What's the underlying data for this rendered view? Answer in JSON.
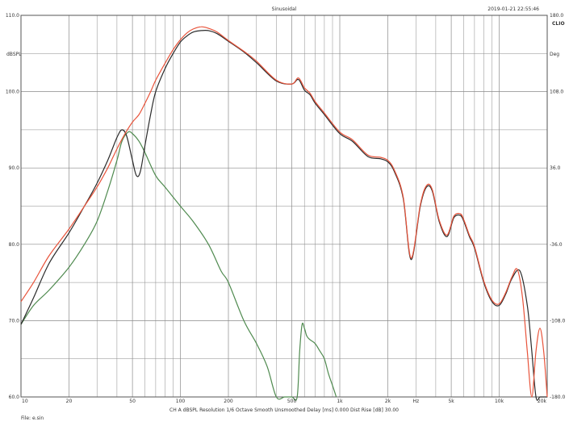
{
  "chart_data": {
    "type": "line",
    "title": "Sinusoidal",
    "timestamp": "2019-01-21 22:55:46",
    "logo": "CLIO",
    "xscale": "log",
    "xlim": [
      10,
      20000
    ],
    "ylim": [
      60,
      110
    ],
    "ylim_right": [
      -180,
      180
    ],
    "grid": true,
    "ylabel": "dBSPL",
    "ylabel_right": "Deg",
    "x_ticks": [
      {
        "value": 10,
        "label": "10"
      },
      {
        "value": 20,
        "label": "20"
      },
      {
        "value": 50,
        "label": "50"
      },
      {
        "value": 100,
        "label": "100"
      },
      {
        "value": 200,
        "label": "200"
      },
      {
        "value": 500,
        "label": "500"
      },
      {
        "value": 1000,
        "label": "1k"
      },
      {
        "value": 2000,
        "label": "2k"
      },
      {
        "value": 3000,
        "label": "Hz"
      },
      {
        "value": 5000,
        "label": "5k"
      },
      {
        "value": 10000,
        "label": "10k"
      },
      {
        "value": 20000,
        "label": "20k"
      }
    ],
    "y_ticks_left": [
      "110.0",
      "100.0",
      "90.0",
      "80.0",
      "70.0",
      "60.0"
    ],
    "y_ticks_right": [
      "180.0",
      "108.0",
      "36.0",
      "-36.0",
      "-108.0",
      "-180.0"
    ],
    "footer": "CH A  dBSPL  Resolution 1/6 Octave  Smooth Unsmoothed  Delay [ms] 0.000  Dist Rise [dB] 30.00",
    "file_label": "File: e.sin",
    "colors": {
      "black": "#2b2b2b",
      "red": "#e8533a",
      "green": "#4f8a4f",
      "grid": "#8a8a8a",
      "axes": "#555555"
    },
    "series": [
      {
        "color": "black",
        "x": [
          10,
          12,
          15,
          20,
          25,
          30,
          35,
          40,
          43,
          46,
          50,
          53,
          56,
          60,
          65,
          70,
          80,
          90,
          100,
          110,
          120,
          135,
          150,
          170,
          200,
          250,
          300,
          400,
          500,
          550,
          600,
          650,
          700,
          800,
          1000,
          1200,
          1500,
          1800,
          2000,
          2200,
          2500,
          2800,
          3200,
          3500,
          3800,
          4200,
          4700,
          5200,
          5700,
          6000,
          6500,
          7000,
          8000,
          9000,
          10000,
          11000,
          12000,
          13500,
          15000,
          16000,
          17000,
          18000,
          19000,
          20000
        ],
        "values": [
          69.5,
          73,
          77.5,
          81.5,
          85,
          88,
          91,
          94,
          95,
          94.2,
          91,
          89,
          89.5,
          93,
          97,
          100,
          103,
          105,
          106.5,
          107.3,
          107.8,
          108,
          108,
          107.6,
          106.6,
          105.2,
          103.8,
          101.4,
          101,
          101.6,
          100.2,
          99.6,
          98.5,
          97,
          94.5,
          93.5,
          91.5,
          91.2,
          90.8,
          89.5,
          86,
          78,
          85,
          87.5,
          87,
          83,
          81,
          83.5,
          83.8,
          83,
          81,
          79.5,
          75,
          72.5,
          72,
          73.5,
          75.5,
          76.5,
          72,
          66,
          60,
          60,
          60,
          60
        ]
      },
      {
        "color": "red",
        "x": [
          10,
          12,
          15,
          20,
          25,
          30,
          35,
          40,
          45,
          50,
          55,
          60,
          65,
          70,
          80,
          90,
          100,
          110,
          120,
          135,
          150,
          170,
          200,
          250,
          300,
          400,
          500,
          550,
          600,
          650,
          700,
          800,
          1000,
          1200,
          1500,
          1800,
          2000,
          2200,
          2500,
          2800,
          3200,
          3500,
          3800,
          4200,
          4700,
          5200,
          5700,
          6000,
          6500,
          7000,
          8000,
          9000,
          10000,
          11000,
          12000,
          13000,
          14000,
          15000,
          16000,
          17000,
          18000,
          19000,
          20000
        ],
        "values": [
          72.5,
          75,
          78.5,
          82,
          85,
          87.5,
          90,
          92.5,
          94.5,
          96,
          97,
          98.5,
          100,
          101.5,
          103.7,
          105.5,
          106.8,
          107.7,
          108.2,
          108.5,
          108.3,
          107.8,
          106.7,
          105.3,
          104,
          101.5,
          101,
          101.8,
          100.5,
          99.8,
          98.7,
          97.2,
          94.7,
          93.7,
          91.7,
          91.4,
          91,
          89.7,
          86.2,
          78.2,
          85.2,
          87.7,
          87.2,
          83.2,
          81.2,
          83.7,
          84,
          83.2,
          81.2,
          79.7,
          75.2,
          72.7,
          72.2,
          73.7,
          75.7,
          76.7,
          73,
          66,
          60,
          66,
          69,
          66,
          60
        ]
      },
      {
        "color": "green",
        "x": [
          10,
          12,
          15,
          20,
          25,
          30,
          35,
          40,
          43,
          47,
          50,
          55,
          60,
          70,
          80,
          100,
          120,
          150,
          180,
          200,
          250,
          300,
          350,
          400,
          450,
          500,
          540,
          560,
          580,
          600,
          620,
          650,
          700,
          750,
          800,
          850,
          900,
          950
        ],
        "values": [
          69.5,
          72,
          74,
          77,
          80,
          83,
          87,
          91,
          93.5,
          94.7,
          94.5,
          93.5,
          92,
          89,
          87.5,
          85,
          83,
          80,
          76.5,
          75,
          70,
          67,
          64,
          60,
          60,
          60,
          60,
          66,
          69.5,
          69,
          68,
          67.5,
          67,
          66,
          65,
          63,
          61.5,
          60
        ]
      }
    ]
  }
}
